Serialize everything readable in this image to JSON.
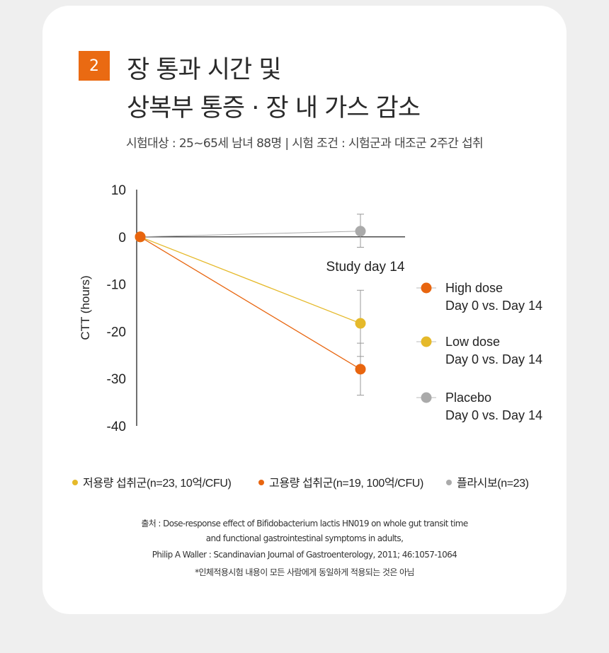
{
  "badge": "2",
  "title_line1": "장 통과 시간 및",
  "title_line2": "상복부 통증 · 장 내 가스 감소",
  "subtitle": "시험대상 : 25~65세 남녀 88명  |  시험 조건 : 시험군과 대조군 2주간 섭취",
  "chart_data": {
    "type": "line",
    "ylabel": "CTT (hours)",
    "xlabel": "Study day 14",
    "ylim": [
      -40,
      10
    ],
    "yticks": [
      "10",
      "0",
      "-10",
      "-20",
      "-30",
      "-40"
    ],
    "x": [
      0,
      14
    ],
    "series": [
      {
        "name": "High dose",
        "legend_line2": "Day 0 vs. Day 14",
        "color": "#e8650f",
        "values": [
          0,
          -28
        ],
        "error_day14": [
          -33.5,
          -22.5
        ]
      },
      {
        "name": "Low dose",
        "legend_line2": "Day 0 vs. Day 14",
        "color": "#e5b92a",
        "values": [
          0,
          -18.3
        ],
        "error_day14": [
          -25.3,
          -11.3
        ]
      },
      {
        "name": "Placebo",
        "legend_line2": "Day 0 vs. Day 14",
        "color": "#aaaaaa",
        "values": [
          0,
          1.2
        ],
        "error_day14": [
          -2.2,
          4.8
        ]
      }
    ],
    "bottom_legend": [
      {
        "label": "저용량 섭취군(n=23, 10억/CFU)",
        "color": "#e5b92a"
      },
      {
        "label": "고용량 섭취군(n=19, 100억/CFU)",
        "color": "#e8650f"
      },
      {
        "label": "플라시보(n=23)",
        "color": "#aaaaaa"
      }
    ]
  },
  "source": {
    "line1": "출처 : Dose-response effect of Bifidobacterium lactis HN019 on whole gut transit time",
    "line2": "and functional gastrointestinal symptoms in adults,",
    "line3": "Philip A Waller : Scandinavian Journal of Gastroenterology, 2011; 46:1057-1064",
    "line4": "*인체적용시험 내용이 모든 사람에게 동일하게 적용되는 것은 아님"
  }
}
